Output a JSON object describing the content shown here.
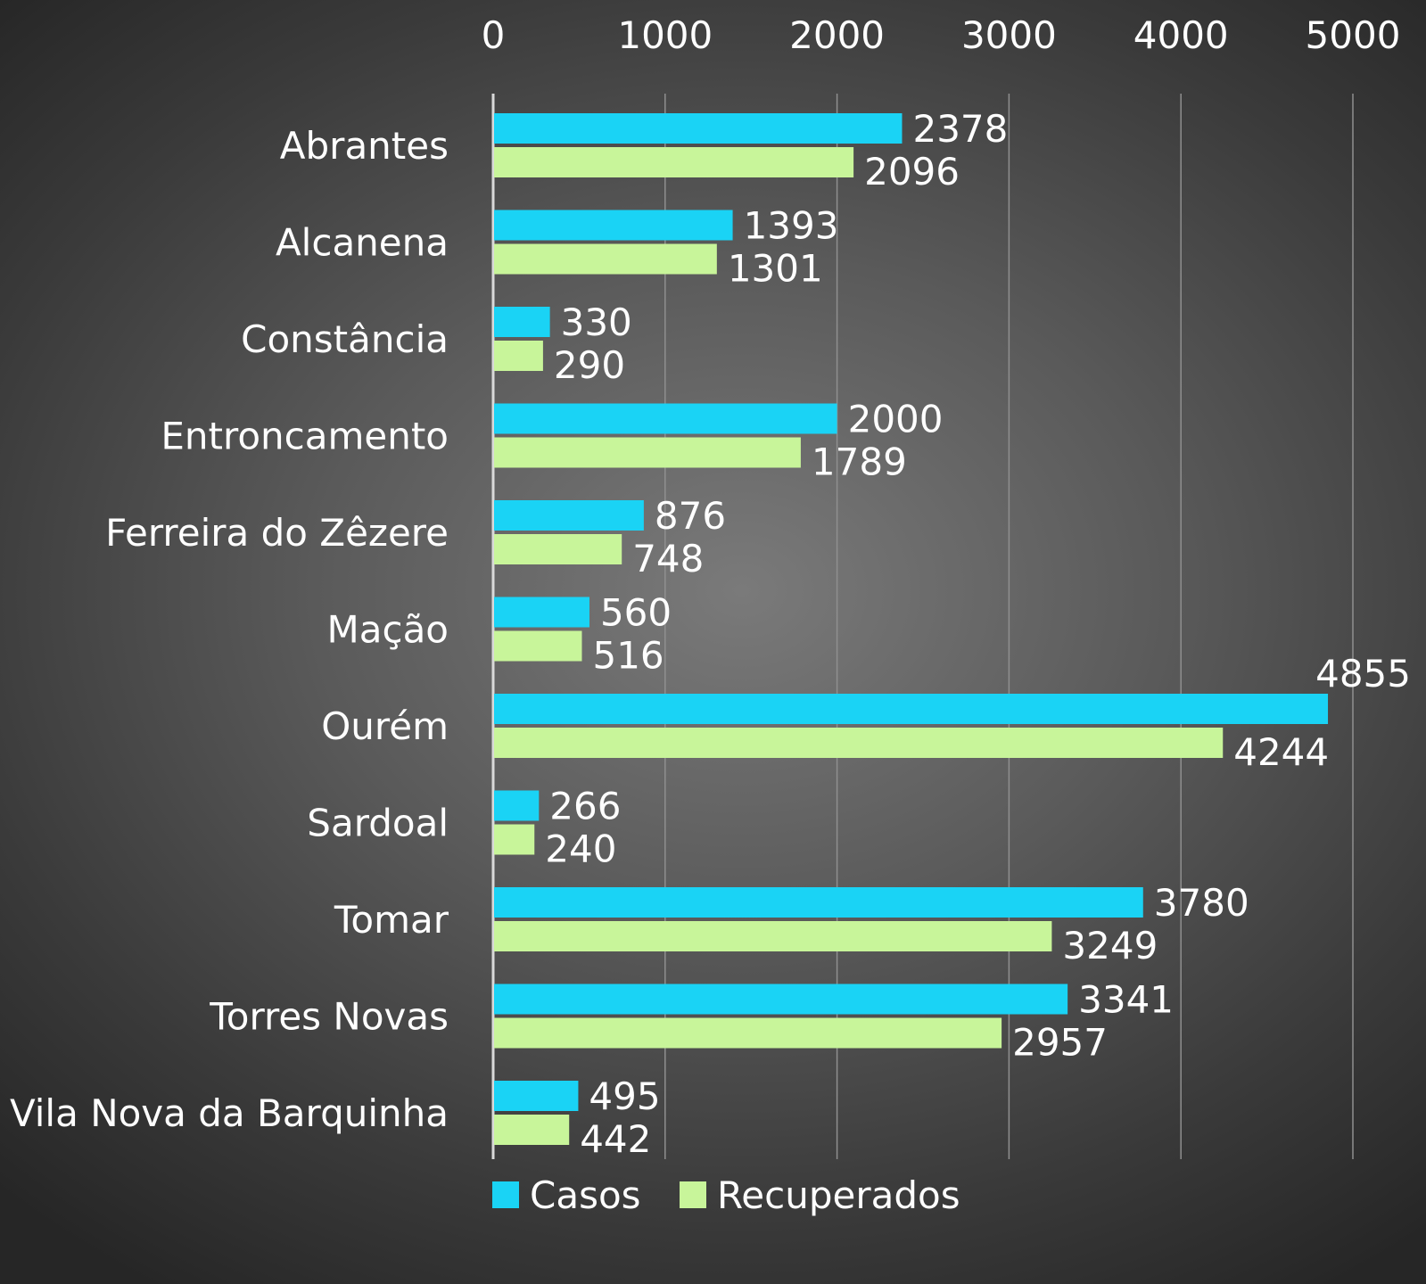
{
  "chart_data": {
    "type": "bar",
    "orientation": "horizontal",
    "categories": [
      "Abrantes",
      "Alcanena",
      "Constância",
      "Entroncamento",
      "Ferreira do Zêzere",
      "Mação",
      "Ourém",
      "Sardoal",
      "Tomar",
      "Torres Novas",
      "Vila Nova da Barquinha"
    ],
    "series": [
      {
        "name": "Casos",
        "color": "#1ad3f5",
        "values": [
          2378,
          1393,
          330,
          2000,
          876,
          560,
          4855,
          266,
          3780,
          3341,
          495
        ]
      },
      {
        "name": "Recuperados",
        "color": "#c8f59a",
        "values": [
          2096,
          1301,
          290,
          1789,
          748,
          516,
          4244,
          240,
          3249,
          2957,
          442
        ]
      }
    ],
    "xlim": [
      0,
      5000
    ],
    "xticks": [
      0,
      1000,
      2000,
      3000,
      4000,
      5000
    ],
    "x_axis_position": "top",
    "grid": true,
    "legend_position": "bottom",
    "title": "",
    "xlabel": "",
    "ylabel": ""
  }
}
